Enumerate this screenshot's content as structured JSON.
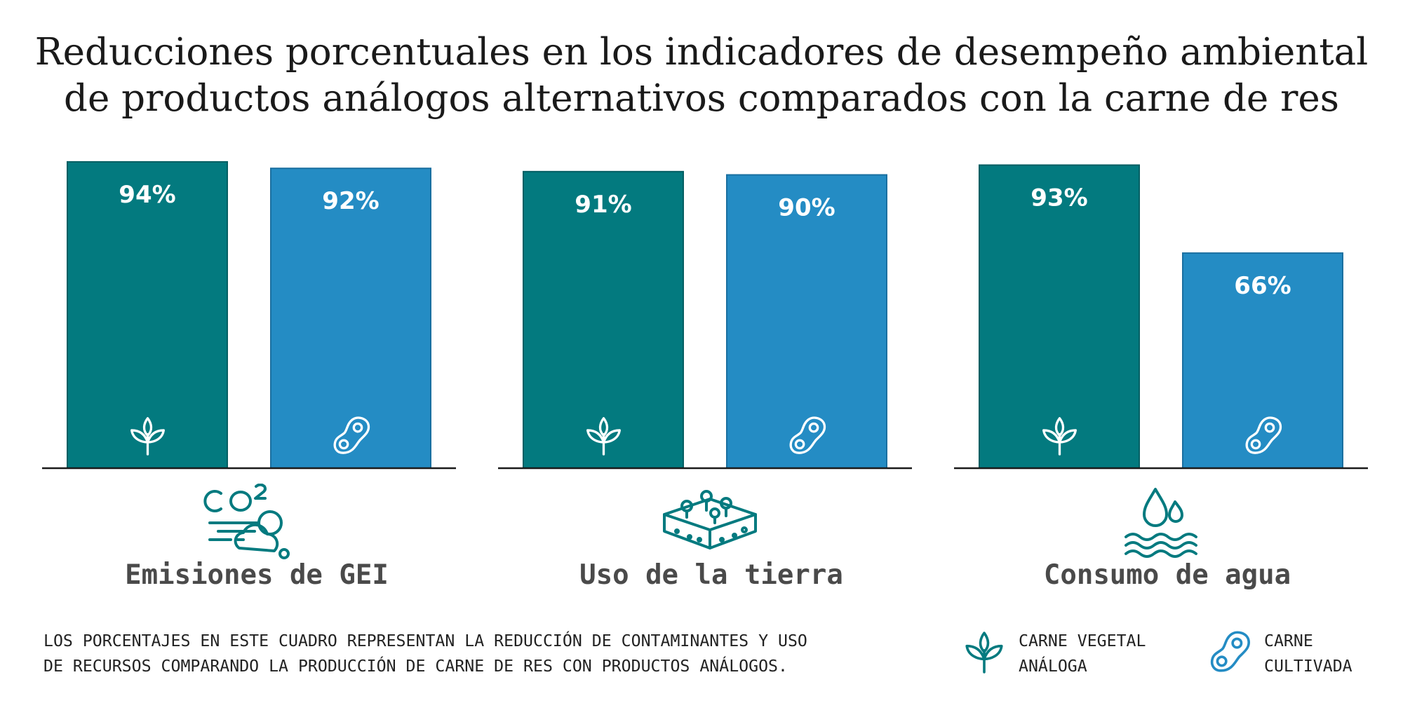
{
  "chart_data": {
    "type": "bar",
    "title": "Reducciones porcentuales en los indicadores de desempeño ambiental\nde productos análogos alternativos comparados con la carne de res",
    "categories": [
      "Emisiones de GEI",
      "Uso de la tierra",
      "Consumo de agua"
    ],
    "series": [
      {
        "name": "CARNE VEGETAL\nANÁLOGA",
        "values": [
          94,
          91,
          93
        ],
        "labels": [
          "94%",
          "91%",
          "93%"
        ],
        "color": "#037a7f",
        "icon": "plant-sprout-icon"
      },
      {
        "name": "CARNE\nCULTIVADA",
        "values": [
          92,
          90,
          66
        ],
        "labels": [
          "92%",
          "90%",
          "66%"
        ],
        "color": "#248cc4",
        "icon": "cultured-meat-icon"
      }
    ],
    "ylim": [
      0,
      100
    ],
    "category_icons": [
      "co2-clouds-icon",
      "land-plot-icon",
      "water-drops-icon"
    ],
    "footnote": "LOS PORCENTAJES EN ESTE CUADRO REPRESENTAN LA REDUCCIÓN DE CONTAMINANTES Y USO\nDE RECURSOS COMPARANDO LA PRODUCCIÓN DE CARNE DE RES CON PRODUCTOS ANÁLOGOS."
  },
  "colors": {
    "teal": "#037a7f",
    "blue": "#248cc4",
    "label_gray": "#4a4a4a",
    "axis": "#1a1a1a"
  }
}
